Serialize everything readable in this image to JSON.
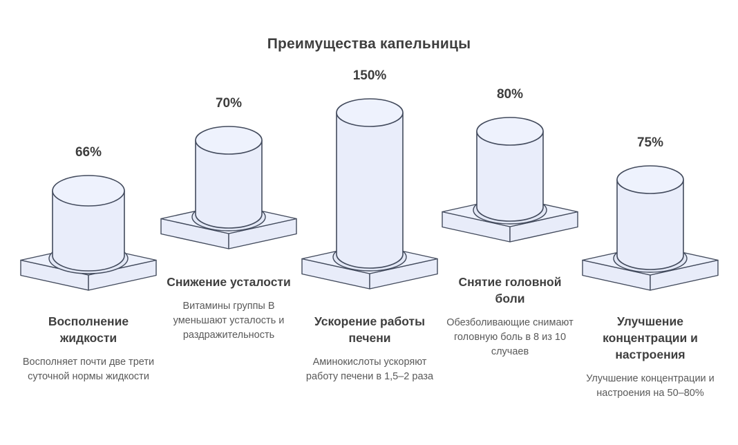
{
  "title": "Преимущества капельницы",
  "colors": {
    "background": "#ffffff",
    "outline": "#424a5c",
    "cylinder_fill": "#e9edfa",
    "cylinder_top_fill": "#eef2fd",
    "platform_top_fill": "#edf1fc",
    "platform_side_fill": "#e8ecf9",
    "shadow_fill": "#e3e8f6",
    "title_color": "#3e3e3e",
    "heading_color": "#3f3f3f",
    "description_color": "#595959"
  },
  "chart_data": {
    "type": "bar",
    "title": "Преимущества капельницы",
    "unit": "%",
    "legend": "none",
    "grid": false,
    "style": "isometric 3D cylinders on square pedestals, values labeled above each bar",
    "categories": [
      "Восполнение жидкости",
      "Снижение усталости",
      "Ускорение работы печени",
      "Снятие головной боли",
      "Улучшение концентрации и настроения"
    ],
    "values": [
      66,
      70,
      150,
      80,
      75
    ],
    "value_labels": [
      "66%",
      "70%",
      "150%",
      "80%",
      "75%"
    ],
    "annotations": [
      "Восполняет почти две трети суточной нормы жидкости",
      "Витамины группы В уменьшают усталость и раздражительность",
      "Аминокислоты ускоряют работу печени в 1,5–2 раза",
      "Обезболивающие снимают головную боль в 8 из 10 случаев",
      "Улучшение концентрации и настроения на 50–80%"
    ]
  },
  "columns": [
    {
      "percent_label": "66%",
      "heading": "Восполнение жидкости",
      "description": "Восполняет почти две трети суточной нормы жидкости"
    },
    {
      "percent_label": "70%",
      "heading": "Снижение усталости",
      "description": "Витамины группы В уменьшают усталость и раздражительность"
    },
    {
      "percent_label": "150%",
      "heading": "Ускорение работы печени",
      "description": "Аминокислоты ускоряют работу печени в 1,5–2 раза"
    },
    {
      "percent_label": "80%",
      "heading": "Снятие головной боли",
      "description": "Обезболивающие снимают головную боль в 8 из 10 случаев"
    },
    {
      "percent_label": "75%",
      "heading": "Улучшение концентрации и настроения",
      "description": "Улучшение концентрации и настроения на 50–80%"
    }
  ]
}
